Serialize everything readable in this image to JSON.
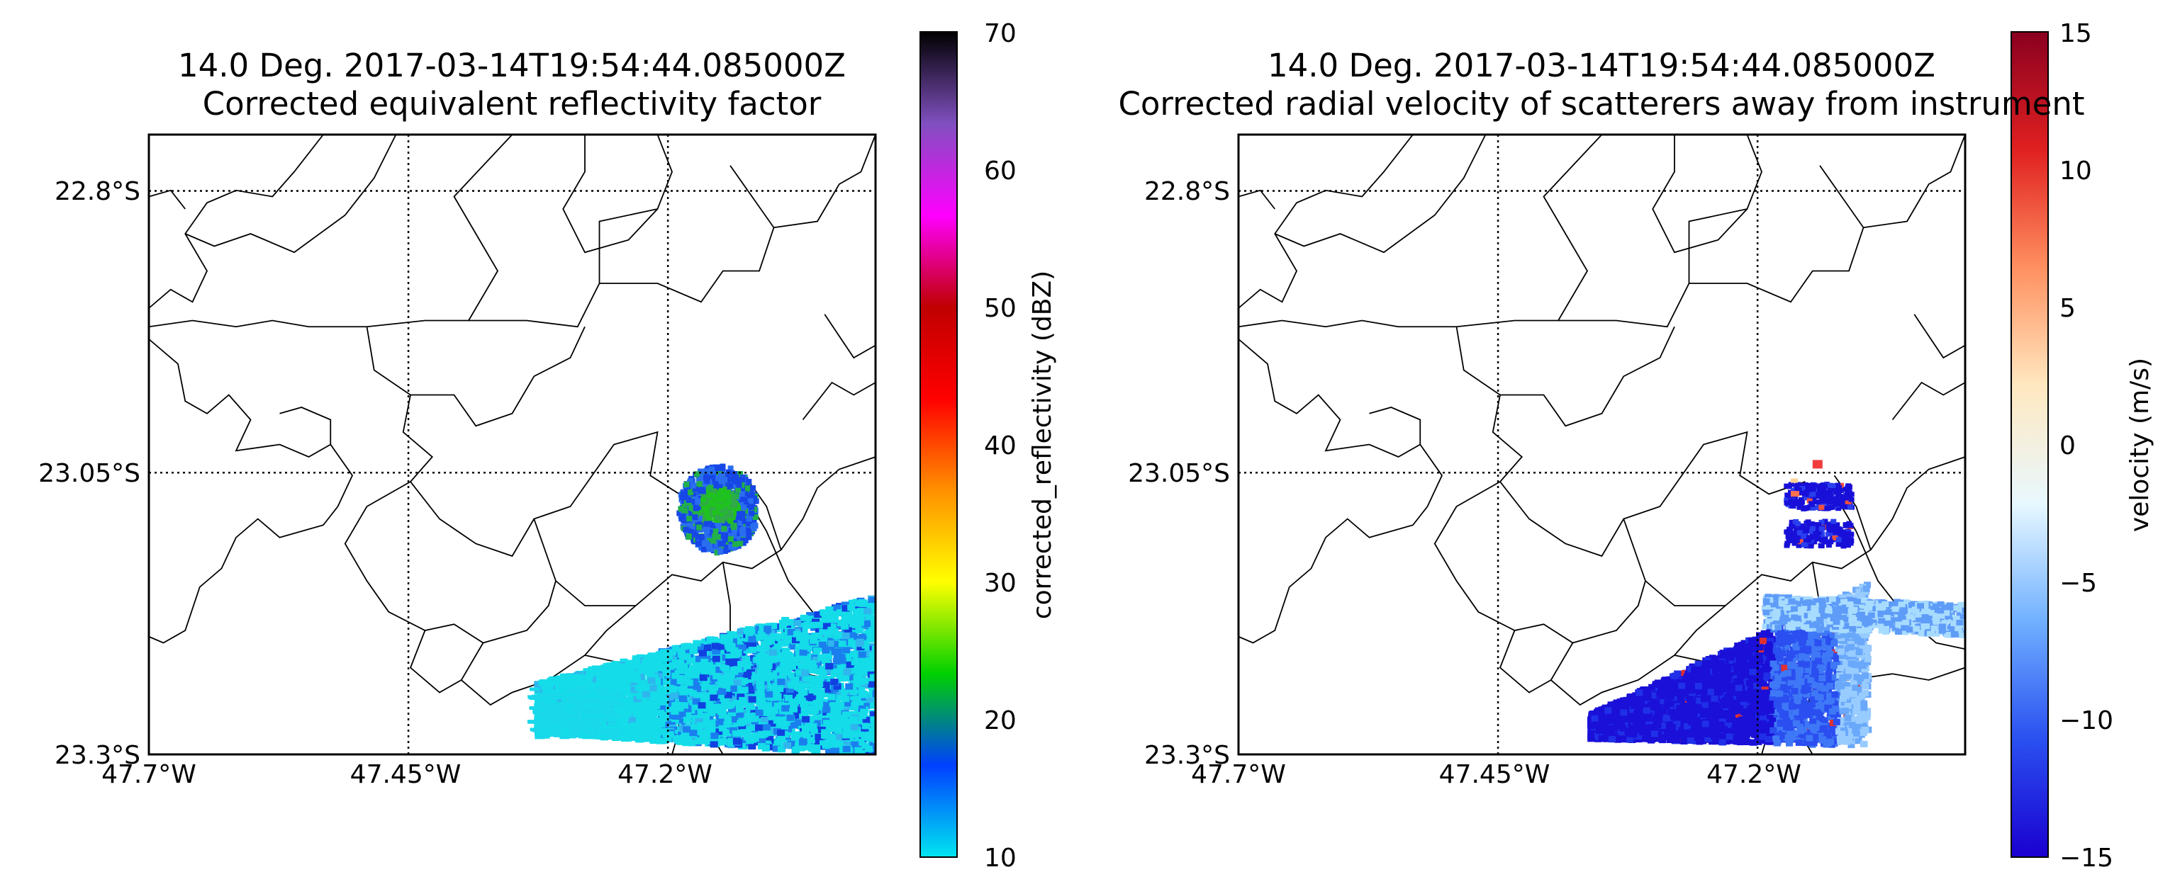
{
  "chart_data": [
    {
      "type": "heatmap",
      "title_line1": "14.0 Deg. 2017-03-14T19:54:44.085000Z",
      "title_line2": "Corrected equivalent reflectivity factor",
      "x_ticks": [
        "47.7°W",
        "47.45°W",
        "47.2°W"
      ],
      "x_tick_values": [
        -47.7,
        -47.45,
        -47.2
      ],
      "y_ticks": [
        "22.8°S",
        "23.05°S",
        "23.3°S"
      ],
      "y_tick_values": [
        -22.8,
        -23.05,
        -23.3
      ],
      "xlim": [
        -47.7,
        -47.0
      ],
      "ylim": [
        -23.3,
        -22.75
      ],
      "grid": "dotted",
      "colorbar": {
        "label": "corrected_reflectivity (dBZ)",
        "range": [
          10,
          70
        ],
        "ticks": [
          "10",
          "20",
          "30",
          "40",
          "50",
          "60",
          "70"
        ],
        "stops": [
          "#00e5f0",
          "#0040ff",
          "#00d000",
          "#ffff00",
          "#ff9000",
          "#ff0000",
          "#c00000",
          "#ff00ff",
          "#8050c0",
          "#000000"
        ]
      },
      "echoes": [
        {
          "region": "northern cell",
          "lon": [
            -47.19,
            -47.13
          ],
          "lat": [
            -23.12,
            -23.03
          ],
          "values_dBZ": [
            20,
            28
          ]
        },
        {
          "region": "southern band",
          "lon": [
            -47.4,
            -47.0
          ],
          "lat": [
            -23.3,
            -23.17
          ],
          "values_dBZ": [
            12,
            20
          ]
        }
      ]
    },
    {
      "type": "heatmap",
      "title_line1": "14.0 Deg. 2017-03-14T19:54:44.085000Z",
      "title_line2": "Corrected radial velocity of scatterers away from instrument",
      "x_ticks": [
        "47.7°W",
        "47.45°W",
        "47.2°W"
      ],
      "x_tick_values": [
        -47.7,
        -47.45,
        -47.2
      ],
      "y_ticks": [
        "22.8°S",
        "23.05°S",
        "23.3°S"
      ],
      "y_tick_values": [
        -22.8,
        -23.05,
        -23.3
      ],
      "xlim": [
        -47.7,
        -47.0
      ],
      "ylim": [
        -23.3,
        -22.75
      ],
      "grid": "dotted",
      "colorbar": {
        "label": "velocity (m/s)",
        "range": [
          -15,
          15
        ],
        "ticks": [
          "−15",
          "−10",
          "−5",
          "0",
          "5",
          "10",
          "15"
        ],
        "stops": [
          "#1a00d0",
          "#2a50f0",
          "#70b0ff",
          "#e8f8ff",
          "#ffe8c0",
          "#ff9060",
          "#e02020",
          "#8a0020"
        ]
      },
      "echoes": [
        {
          "region": "northern cell",
          "lon": [
            -47.19,
            -47.13
          ],
          "lat": [
            -23.12,
            -23.03
          ],
          "values_ms": [
            -15,
            -10
          ]
        },
        {
          "region": "southern band",
          "lon": [
            -47.4,
            -47.0
          ],
          "lat": [
            -23.3,
            -23.1
          ],
          "values_ms": [
            -15,
            -5
          ]
        }
      ]
    }
  ]
}
